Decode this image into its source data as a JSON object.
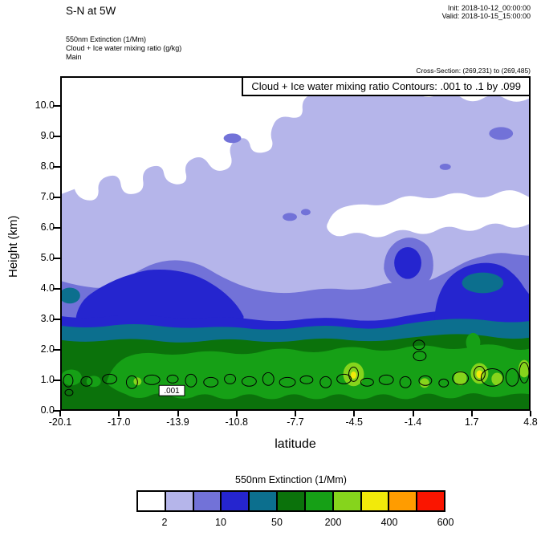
{
  "header": {
    "title": "S-N at 5W",
    "init_label": "Init: 2018-10-12_00:00:00",
    "valid_label": "Valid: 2018-10-15_15:00:00",
    "field_lines": [
      "550nm Extinction  (1/Mm)",
      "Cloud + Ice water mixing ratio  (g/kg)",
      "Main"
    ],
    "cross_section": "Cross-Section: (269,231) to (269,485)"
  },
  "chart_data": {
    "type": "filled-contour-cross-section",
    "title_box": "Cloud + Ice water mixing ratio Contours: .001 to .1 by .099",
    "xlabel": "latitude",
    "ylabel": "Height (km)",
    "x_ticks": [
      "-20.1",
      "-17.0",
      "-13.9",
      "-10.8",
      "-7.7",
      "-4.5",
      "-1.4",
      "1.7",
      "4.8"
    ],
    "y_ticks": [
      "10.0",
      "9.0",
      "8.0",
      "7.0",
      "6.0",
      "5.0",
      "4.0",
      "3.0",
      "2.0",
      "1.0",
      "0.0"
    ],
    "xlim": [
      -20.1,
      4.8
    ],
    "ylim_km": [
      0,
      11
    ],
    "fill_field": "550nm Extinction (1/Mm)",
    "contour_field": "Cloud + Ice water mixing ratio (g/kg)",
    "contour_levels": ".001 to .1 by .099",
    "contour_label": ".001",
    "colorbar": {
      "title": "550nm Extinction  (1/Mm)",
      "colors": [
        "#ffffff",
        "#b5b5ea",
        "#7272d8",
        "#2525cf",
        "#0c6f8e",
        "#0b720b",
        "#16a016",
        "#86d41c",
        "#f2ea0a",
        "#ff9c00",
        "#fa1500"
      ],
      "tick_labels": [
        "2",
        "10",
        "50",
        "200",
        "400",
        "600"
      ],
      "label_boundary_indices": [
        1,
        3,
        5,
        7,
        9,
        11
      ]
    },
    "features": [
      {
        "region": "upper troposphere left, lat -20 to -8, 7.5-11 km",
        "extinction_1perMm": "< 2 (clear/white)"
      },
      {
        "region": "top-right corner above ~10.2 km",
        "extinction_1perMm": "< 2"
      },
      {
        "region": "clear band right, lat -5 to 4.8, ~5.8-7 km",
        "extinction_1perMm": "< 2"
      },
      {
        "region": "mid-troposphere background",
        "extinction_1perMm": "2-5 (pale lavender)"
      },
      {
        "region": "elevated layer 3.0-4.2 km across full section",
        "extinction_1perMm": "5-20"
      },
      {
        "region": "blob lat -3 to -1.5, 4.2-5.6 km",
        "extinction_1perMm": "10-20"
      },
      {
        "region": "right maximum lat 1 to 4.8, 3.3-5 km",
        "extinction_1perMm": "20-50 core"
      },
      {
        "region": "teal layer ~2.5-3 km across section",
        "extinction_1perMm": "20-50"
      },
      {
        "region": "boundary layer 0-2.5 km across section",
        "extinction_1perMm": "50-200"
      },
      {
        "region": "patches near 1 km at lat -4.6 and lat 1-3",
        "extinction_1perMm": "200-400 with tiny 300-400 (yellow) spots"
      },
      {
        "region": "cloud contours",
        "note": "closed .001 g/kg mixing-ratio contours along ~0.5-1.5 km across the section; boxed .001 label near lat -13.8"
      }
    ]
  }
}
